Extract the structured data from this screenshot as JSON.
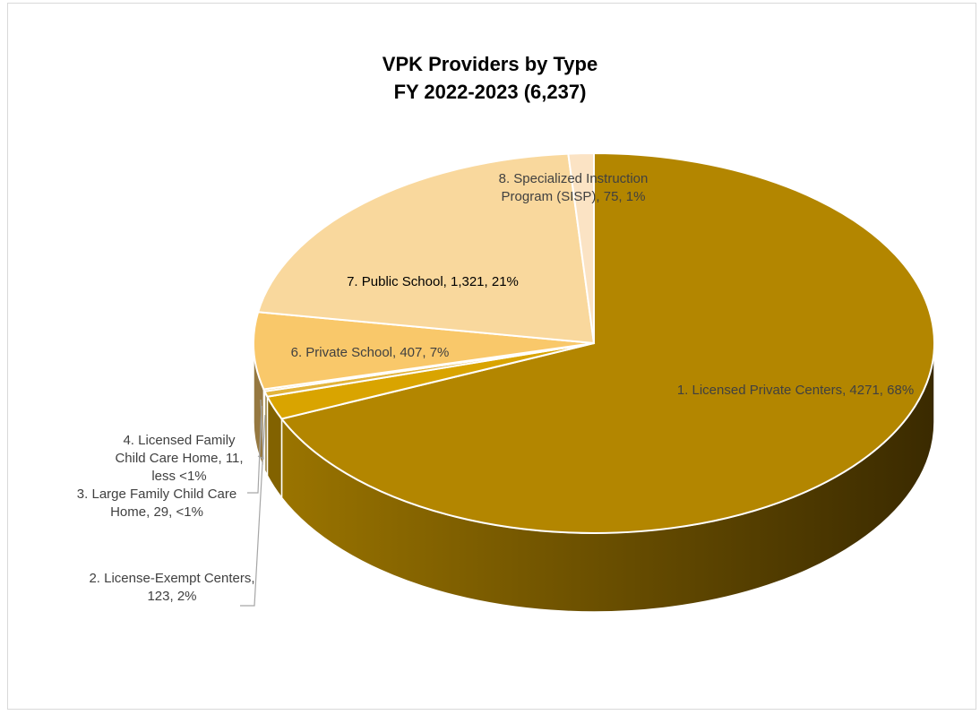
{
  "chart_data": {
    "type": "pie",
    "three_d": true,
    "title": "VPK Providers by Type",
    "subtitle": "FY 2022-2023 (6,237)",
    "slices": [
      {
        "category": "1. Licensed Private Centers",
        "value": 4271,
        "value_text": "4271",
        "pct_text": "68%",
        "color": "#B38600"
      },
      {
        "category": "2. License-Exempt Centers",
        "value": 123,
        "value_text": "123",
        "pct_text": "2%",
        "color": "#D9A400"
      },
      {
        "category": "3. Large Family Child Care Home",
        "value": 29,
        "value_text": "29",
        "pct_text": "<1%",
        "color": "#E2B43C"
      },
      {
        "category": "4. Licensed Family Child Care Home",
        "value": 11,
        "value_text": "11",
        "pct_text": "less <1%",
        "color": "#EEC564"
      },
      {
        "category": "6. Private School",
        "value": 407,
        "value_text": "407",
        "pct_text": "7%",
        "color": "#F9C86A"
      },
      {
        "category": "7. Public School",
        "value": 1321,
        "value_text": "1,321",
        "pct_text": "21%",
        "color": "#F9D89D"
      },
      {
        "category": "8. Specialized Instruction Program (SISP)",
        "value": 75,
        "value_text": "75",
        "pct_text": "1%",
        "color": "#FBE3C4"
      }
    ],
    "labels": [
      {
        "lines": [
          "1. Licensed Private Centers, 4271, 68%"
        ]
      },
      {
        "lines": [
          "2. License-Exempt Centers,",
          "123, 2%"
        ]
      },
      {
        "lines": [
          "3. Large Family Child Care",
          "Home, 29, <1%"
        ]
      },
      {
        "lines": [
          "4. Licensed Family",
          "Child Care Home, 11,",
          "less <1%"
        ]
      },
      {
        "lines": [
          "6. Private School, 407, 7%"
        ]
      },
      {
        "lines": [
          "7. Public School, 1,321, 21%"
        ]
      },
      {
        "lines": [
          "8. Specialized Instruction",
          "Program (SISP), 75, 1%"
        ]
      }
    ],
    "legend": "none"
  }
}
